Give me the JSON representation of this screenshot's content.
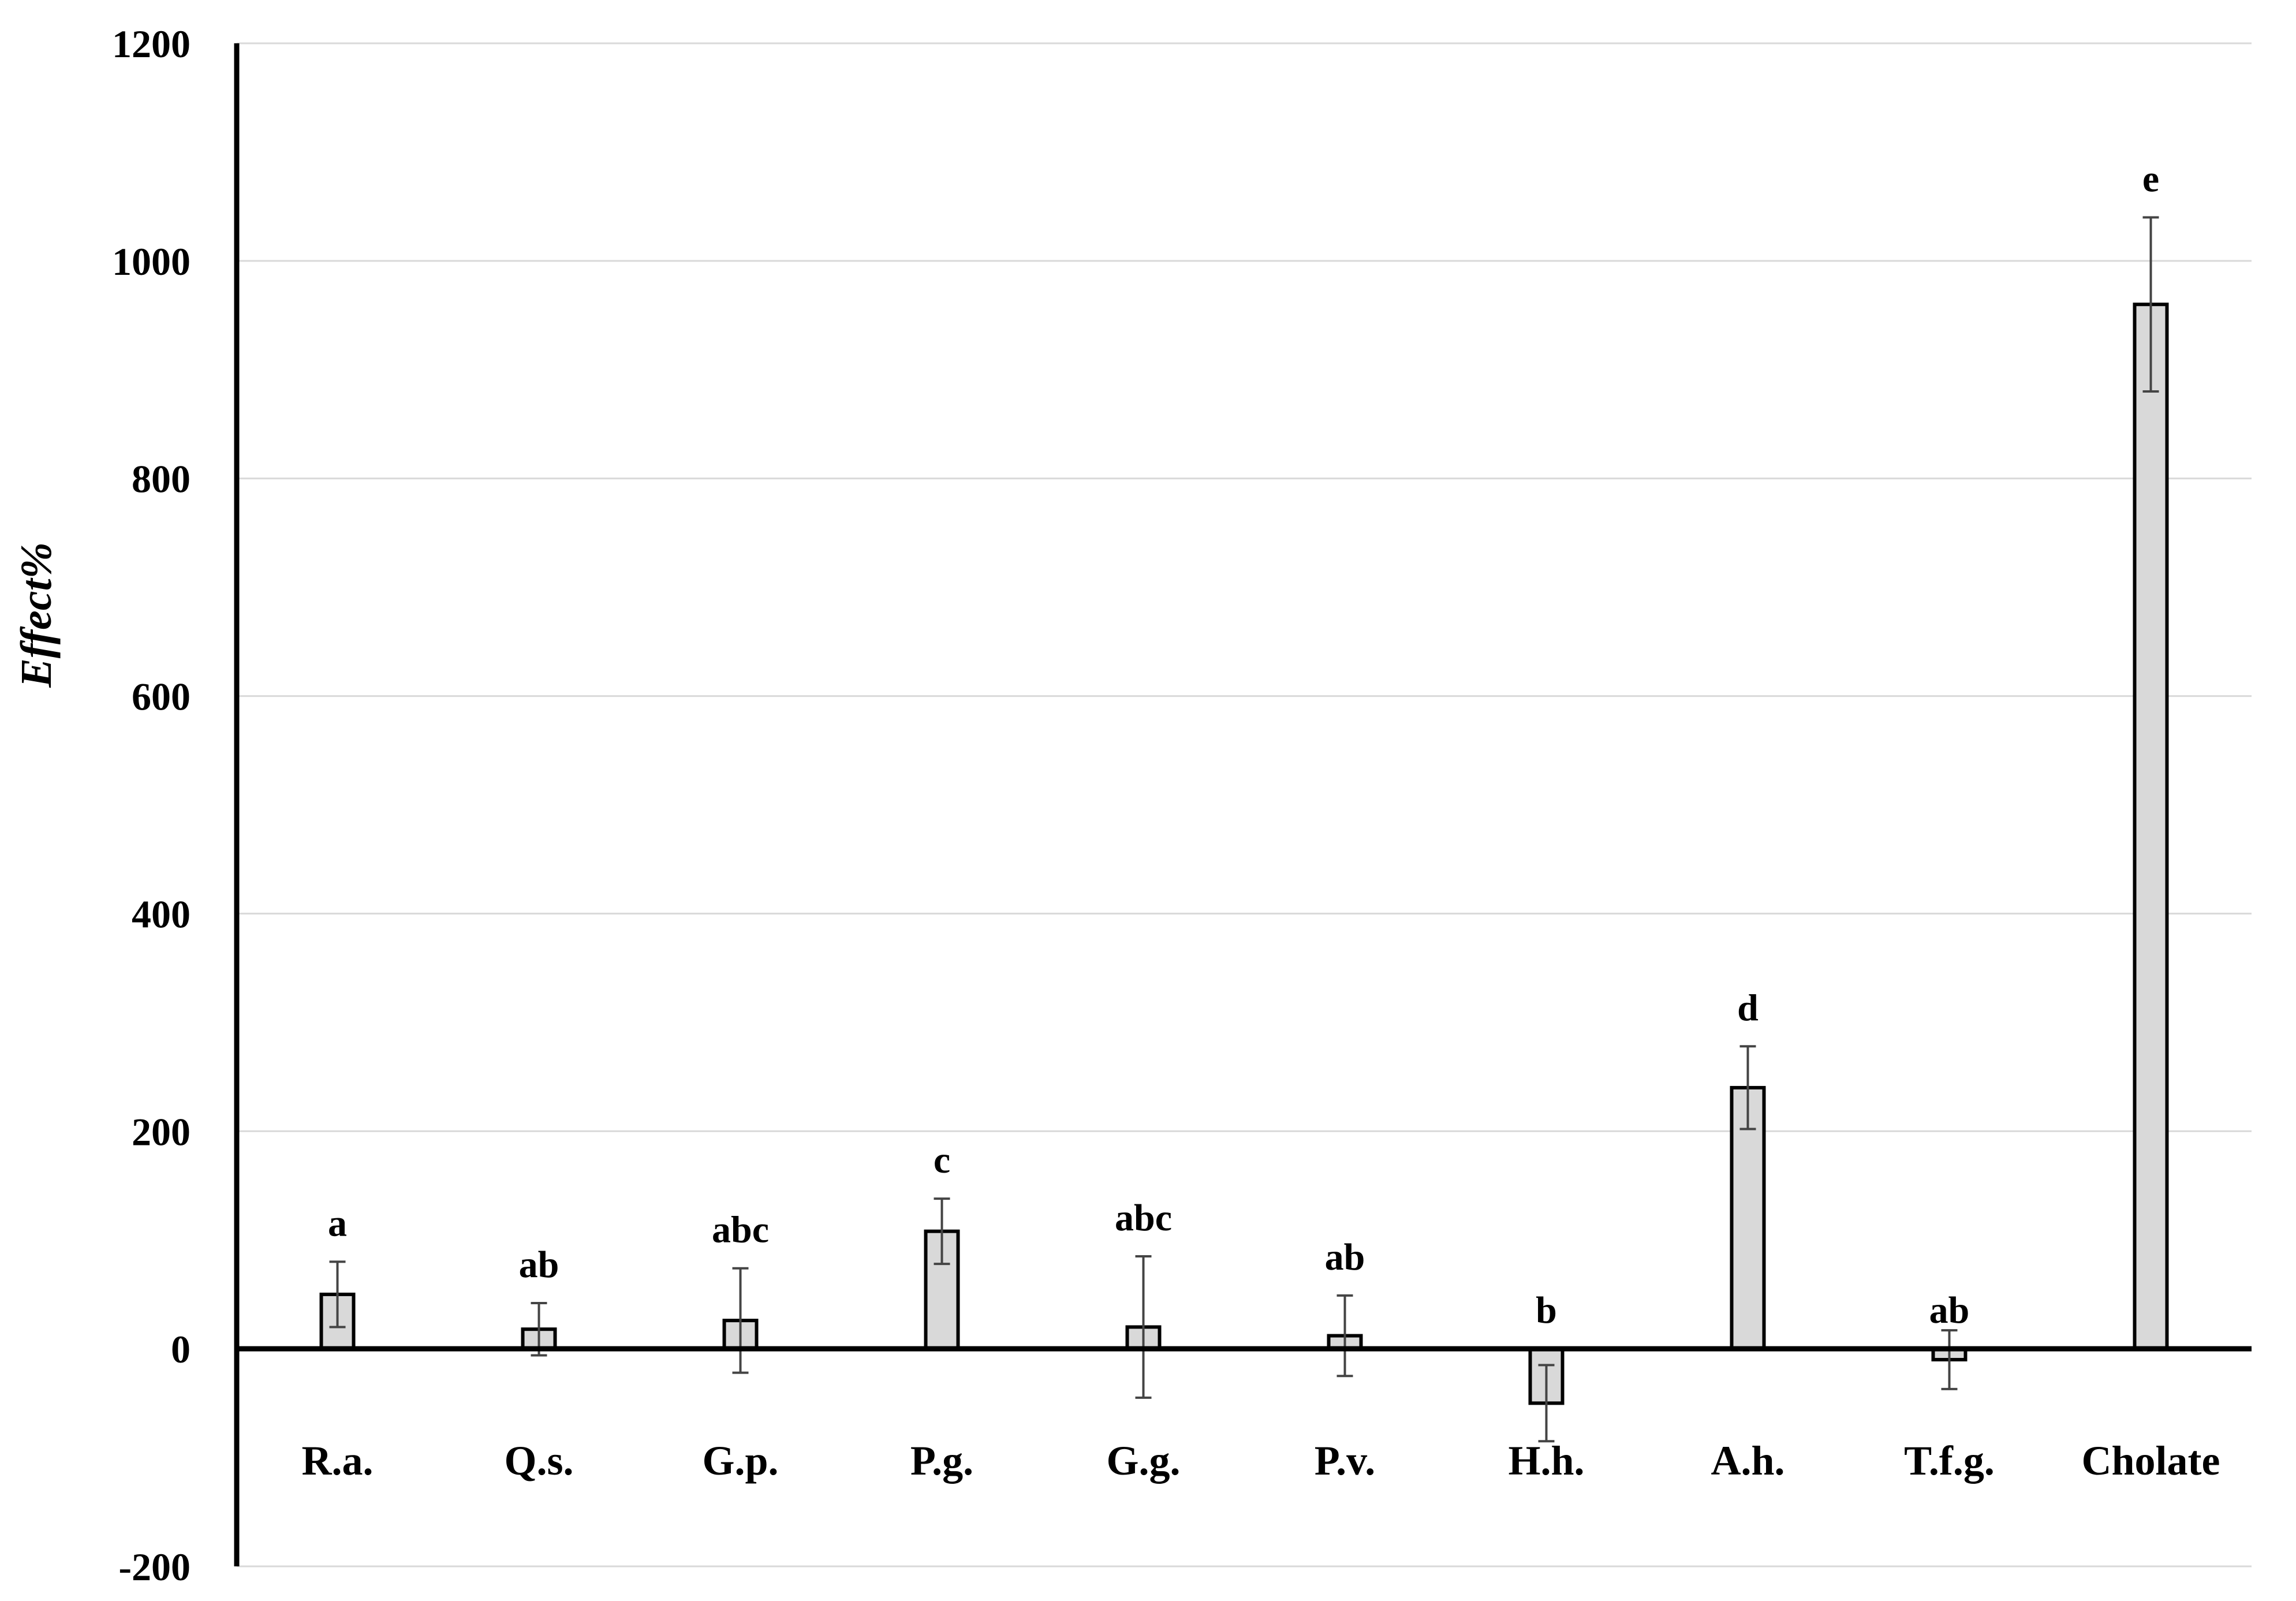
{
  "chart_data": {
    "type": "bar",
    "title": "",
    "xlabel": "",
    "ylabel": "Effect%",
    "ylim": [
      -200,
      1200
    ],
    "yticks": [
      -200,
      0,
      200,
      400,
      600,
      800,
      1000,
      1200
    ],
    "grid": true,
    "legend": "none",
    "bar_color": "#d9d9d9",
    "categories": [
      "R.a.",
      "Q.s.",
      "G.p.",
      "P.g.",
      "G.g.",
      "P.v.",
      "H.h.",
      "A.h.",
      "T.f.g.",
      "Cholate"
    ],
    "values": [
      50,
      18,
      26,
      108,
      20,
      12,
      -50,
      240,
      -10,
      960
    ],
    "error": [
      30,
      24,
      48,
      30,
      65,
      37,
      35,
      38,
      27,
      80
    ],
    "significance": [
      "a",
      "ab",
      "abc",
      "c",
      "abc",
      "ab",
      "b",
      "d",
      "ab",
      "e"
    ]
  }
}
